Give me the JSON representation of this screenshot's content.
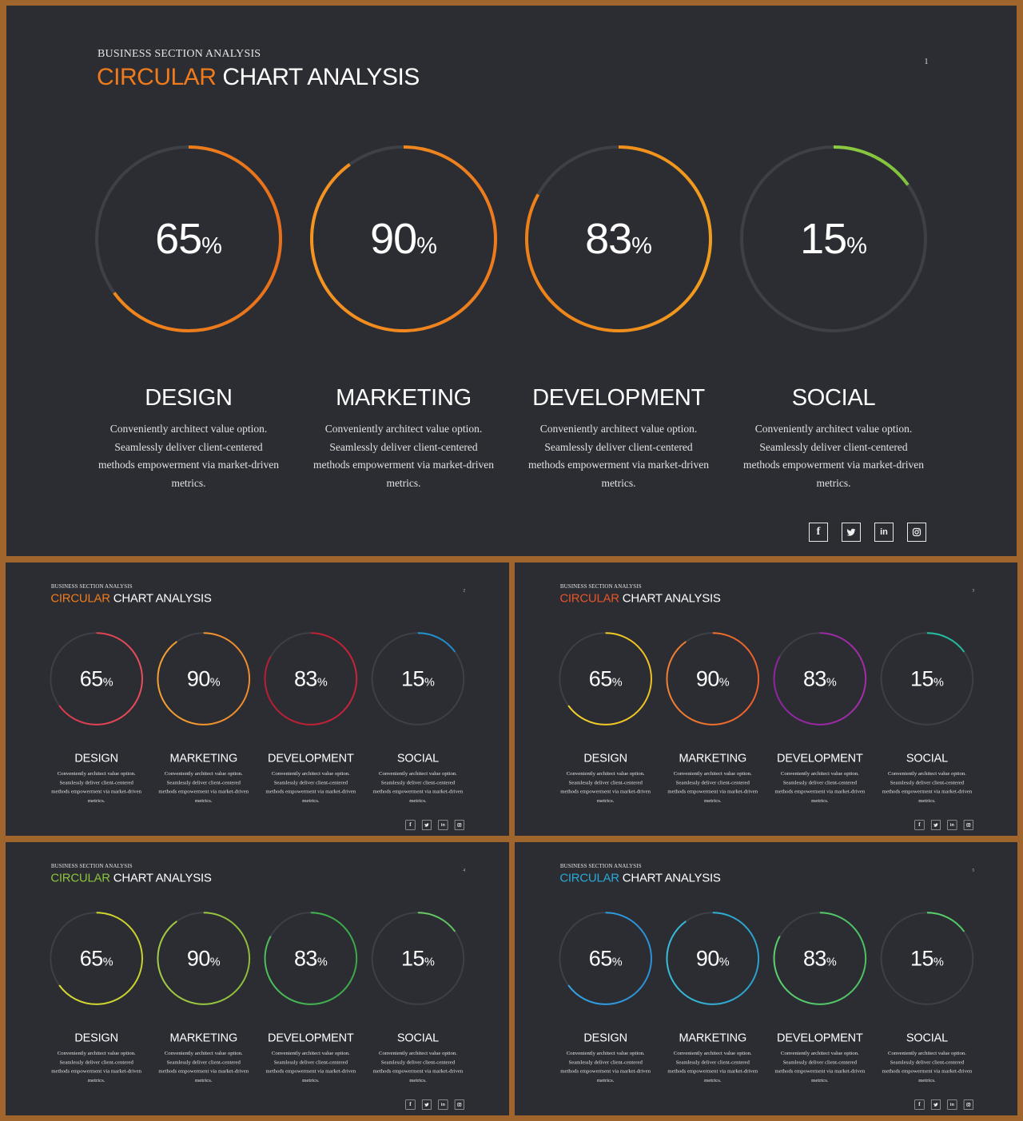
{
  "slides": [
    {
      "subtitle": "BUSINESS SECTION ANALYSIS",
      "title_accent": "CIRCULAR",
      "title_rest": "CHART ANALYSIS",
      "page_number": "1",
      "accent_color": "#f07b1c",
      "ring_colors": [
        [
          "#e8701a",
          "#f28a1c"
        ],
        [
          "#ed7a1c",
          "#f59520"
        ],
        [
          "#f29c1e",
          "#ee8018"
        ],
        [
          "#7cc03c",
          "#9ed444"
        ]
      ]
    },
    {
      "subtitle": "BUSINESS SECTION ANALYSIS",
      "title_accent": "CIRCULAR",
      "title_rest": "CHART ANALYSIS",
      "page_number": "2",
      "accent_color": "#f07b1c",
      "ring_colors": [
        [
          "#e84c5a",
          "#d8374a"
        ],
        [
          "#f08a2a",
          "#f5a030"
        ],
        [
          "#c8223a",
          "#b81d33"
        ],
        [
          "#1e88c8",
          "#27a0dc"
        ]
      ]
    },
    {
      "subtitle": "BUSINESS SECTION ANALYSIS",
      "title_accent": "CIRCULAR",
      "title_rest": "CHART ANALYSIS",
      "page_number": "3",
      "accent_color": "#e8542a",
      "ring_colors": [
        [
          "#f0c020",
          "#f6d42c"
        ],
        [
          "#ec5e28",
          "#f28030"
        ],
        [
          "#a42ca8",
          "#8e24a0"
        ],
        [
          "#1eb89a",
          "#26ccac"
        ]
      ]
    },
    {
      "subtitle": "BUSINESS SECTION ANALYSIS",
      "title_accent": "CIRCULAR",
      "title_rest": "CHART ANALYSIS",
      "page_number": "4",
      "accent_color": "#8cc43c",
      "ring_colors": [
        [
          "#c8d22a",
          "#dcdc34"
        ],
        [
          "#8cbc38",
          "#a4cc44"
        ],
        [
          "#3aa848",
          "#4cc05a"
        ],
        [
          "#5cc05c",
          "#74d070"
        ]
      ]
    },
    {
      "subtitle": "BUSINESS SECTION ANALYSIS",
      "title_accent": "CIRCULAR",
      "title_rest": "CHART ANALYSIS",
      "page_number": "5",
      "accent_color": "#2aa8d8",
      "ring_colors": [
        [
          "#2a90d8",
          "#34a8e8"
        ],
        [
          "#2aa0cc",
          "#38bcd8"
        ],
        [
          "#4cc064",
          "#5cd070"
        ],
        [
          "#4cc860",
          "#6cd878"
        ]
      ]
    }
  ],
  "chart_data": {
    "type": "pie",
    "categories": [
      "DESIGN",
      "MARKETING",
      "DEVELOPMENT",
      "SOCIAL"
    ],
    "values": [
      65,
      90,
      83,
      15
    ],
    "unit": "%",
    "descriptions": [
      "Conveniently architect value option. Seamlessly deliver client-centered methods empowerment via market-driven metrics.",
      "Conveniently architect value option. Seamlessly deliver client-centered methods empowerment via market-driven metrics.",
      "Conveniently architect value option. Seamlessly deliver client-centered methods empowerment via market-driven metrics.",
      "Conveniently architect value option. Seamlessly deliver client-centered methods empowerment via market-driven metrics."
    ],
    "description_lines": [
      "Conveniently architect value option.",
      "Seamlessly deliver client-centered",
      "methods empowerment via market-driven",
      "metrics."
    ]
  },
  "social_icons": [
    {
      "icon": "facebook-icon",
      "glyph": "f"
    },
    {
      "icon": "twitter-icon",
      "glyph": ""
    },
    {
      "icon": "linkedin-icon",
      "glyph": "in"
    },
    {
      "icon": "instagram-icon",
      "glyph": ""
    }
  ],
  "track_color": "#3d4047",
  "background_color": "#2b2d32",
  "frame_color": "#a0652d"
}
